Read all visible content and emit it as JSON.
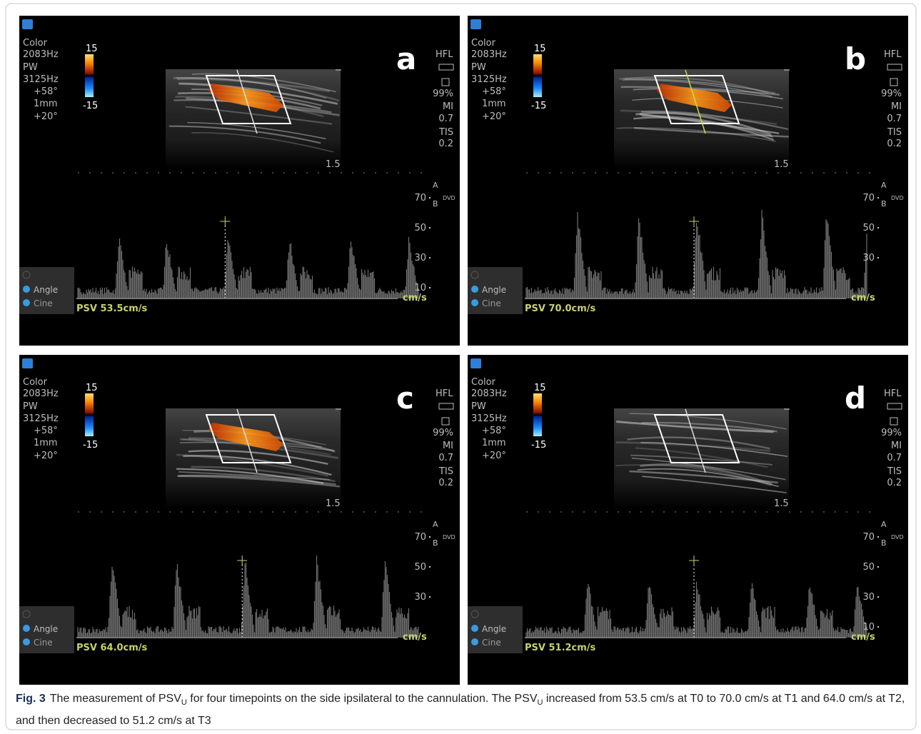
{
  "panels": [
    {
      "label": "a",
      "params": [
        "Color",
        "2083Hz",
        "PW",
        "3125Hz",
        "+58°",
        "1mm",
        "+20°"
      ],
      "scale_max": "15",
      "scale_min": "-15",
      "probe": "HFL",
      "right_info": [
        "99%",
        "MI",
        "0.7",
        "TIS",
        "0.2"
      ],
      "depth": "1.5",
      "velocity_ticks": [
        "70",
        "50",
        "30",
        "10"
      ],
      "trace_labels": [
        "A",
        "B",
        "DVD"
      ],
      "velocity_unit": "cm/s",
      "buttons": [
        "Angle",
        "Cine"
      ],
      "psv": "PSV 53.5cm/s"
    },
    {
      "label": "b",
      "params": [
        "Color",
        "2083Hz",
        "PW",
        "3125Hz",
        "+58°",
        "1mm",
        "+20°"
      ],
      "scale_max": "15",
      "scale_min": "-15",
      "probe": "HFL",
      "right_info": [
        "99%",
        "MI",
        "0.7",
        "TIS",
        "0.2"
      ],
      "depth": "1.5",
      "velocity_ticks": [
        "70",
        "50",
        "30"
      ],
      "trace_labels": [
        "A",
        "B",
        "DVD"
      ],
      "velocity_unit": "cm/s",
      "buttons": [
        "Angle",
        "Cine"
      ],
      "psv": "PSV 70.0cm/s"
    },
    {
      "label": "c",
      "params": [
        "Color",
        "2083Hz",
        "PW",
        "3125Hz",
        "+58°",
        "1mm",
        "+20°"
      ],
      "scale_max": "15",
      "scale_min": "-15",
      "probe": "HFL",
      "right_info": [
        "99%",
        "MI",
        "0.7",
        "TIS",
        "0.2"
      ],
      "depth": "1.5",
      "velocity_ticks": [
        "70",
        "50",
        "30"
      ],
      "trace_labels": [
        "A",
        "B",
        "DVD"
      ],
      "velocity_unit": "cm/s",
      "buttons": [
        "Angle",
        "Cine"
      ],
      "psv": "PSV 64.0cm/s"
    },
    {
      "label": "d",
      "params": [
        "Color",
        "2083Hz",
        "PW",
        "3125Hz",
        "+58°",
        "1mm",
        "+20°"
      ],
      "scale_max": "15",
      "scale_min": "-15",
      "probe": "HFL",
      "right_info": [
        "99%",
        "MI",
        "0.7",
        "TIS",
        "0.2"
      ],
      "depth": "1.5",
      "velocity_ticks": [
        "70",
        "50",
        "30",
        "10"
      ],
      "trace_labels": [
        "A",
        "B",
        "DVD"
      ],
      "velocity_unit": "cm/s",
      "buttons": [
        "Angle",
        "Cine"
      ],
      "psv": "PSV 51.2cm/s"
    }
  ],
  "caption": {
    "label": "Fig. 3",
    "text_1": "The measurement of PSV",
    "sub_1": "U",
    "text_2": " for four timepoints on the side ipsilateral to the cannulation. The PSV",
    "sub_2": "U",
    "text_3": " increased from 53.5 cm/s at T0 to 70.0 cm/s at T1 and 64.0 cm/s at T2, and then decreased to 51.2 cm/s at T3"
  }
}
